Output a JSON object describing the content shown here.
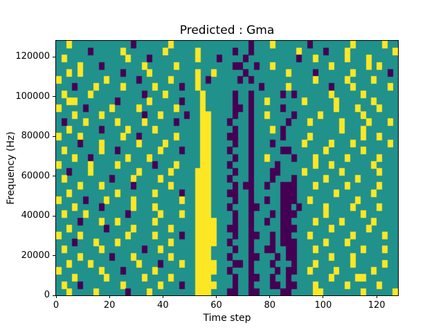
{
  "chart_data": {
    "type": "heatmap",
    "title": "Predicted : Gma",
    "xlabel": "Time step",
    "ylabel": "Frequency (Hz)",
    "x_range": [
      0,
      128
    ],
    "y_range": [
      0,
      128000
    ],
    "x_ticks": [
      0,
      20,
      40,
      60,
      80,
      100,
      120
    ],
    "y_ticks": [
      0,
      20000,
      40000,
      60000,
      80000,
      100000,
      120000
    ],
    "grid": false,
    "legend": "none",
    "colormap": {
      "name": "viridis-3-level",
      "levels": {
        ".": "#21918c",
        "y": "#fde725",
        "p": "#440154"
      },
      "meaning": {
        ".": "mid (teal background)",
        "y": "high (yellow)",
        "p": "low (dark purple)"
      }
    },
    "cell_grid": {
      "cols": 64,
      "rows": 36,
      "note": "rows listed top (high frequency) to bottom (0 Hz); each column spans 2 time steps",
      "rows_top_to_bottom": [
        "..y...........p......y..............p...y......p.......y.....y..",
        "......p.....y.......y.....y......p..p........y....p...y........y",
        ".y...........y...p........y...p....p.........p..y.....y...y.....",
        "....y...p.......y.....y..........pp..p..y..........y......y.y...",
        "..y.y.......p....y........y..y.....p.......y....p......y......p.",
        "y........y.....p.....y....y.p.....p.p...........y.....y....y....",
        "...p...y....y.....y....p..y...........p....y.......p...y......y.",
        ".y....y.........p...y......y.....p..p.....p.p......y.....y......",
        "..yy.......p.....y.....p...y.....p..p..y......y.....y......y....",
        "y....p....y....y......y....y.....pp.p.....p.........y...y...y...",
        "...y....y.......p..y....p..yy....p..p..y....p....y.......y......",
        ".p...y.....y....y.....p....yy...p...p......p...y.....y....y...y.",
        "..y.....p....y....y........yy....p..p...y.p..........y...y......",
        "y...y.......y..p......y....yy...pp..p.....p....y.........y..y...",
        "....p...y......y....y......yy....p..p...p.....y....y...y......y.",
        ".y......y..p.......y...p...yy...p...p.....pp......y......y......",
        "...y..p......y...y.........yy....p..p..y....p...y.....y.....y...",
        "y.....y....y......p...y....yy...p...p....p......y..y.......y....",
        "..p...y........y.....y....yyy....p..p...pp....y......y......y...",
        ".y........p...y....y......yyy...p...p...p...p.....y.....y.......",
        "....y...y.....p......y....yyy....p.pp..p..ppp...y.....y.....y...",
        "..y........y......y....p..yyy...pp..p.....ppp.......y......y....",
        "y....p...y....y........y..yyy....p..p..p..ppp..y........y.......",
        "...y....p.....y...y.......yyy...p...pp....pp.p....y....y....y...",
        ".y...y.......p.....y...y..yyy....p..p...p.ppp.....y......y......",
        "....p...y..y......y.......yyyy...p..p..p..pp....y....y.....y....",
        "..y......p....y......y....yyyy..pp..p.....ppp......y......y.....",
        "y...y........y....y....p..yyyy...p..pp..p.pp...y.......y.....y..",
        "...p...y...y.........y....yyyy..p...p...p.ppp.....y...y.........",
        ".y......y.......p..y......yyy....p..p..pp..pp...y........y...y..",
        "....y.....p...y......y....yyy...p...pp...p.pp......y...y........",
        "..y...y........y...p...y..yyyy...pp.p...p...p...y......y.....y..",
        "y.......y...p.....y.......yyyy..p...p....p.pp..y....y......y....",
        "...y.....y......y....y....yyy....p..pp..p..p.......y....yy......",
        ".y..p.......y......y...p..yyyy...p..p...pp.pp...y.....y.....y...",
        "..y....y.....p...y........yyy...pp..pp....pp....yy.......y.....y"
      ]
    }
  }
}
